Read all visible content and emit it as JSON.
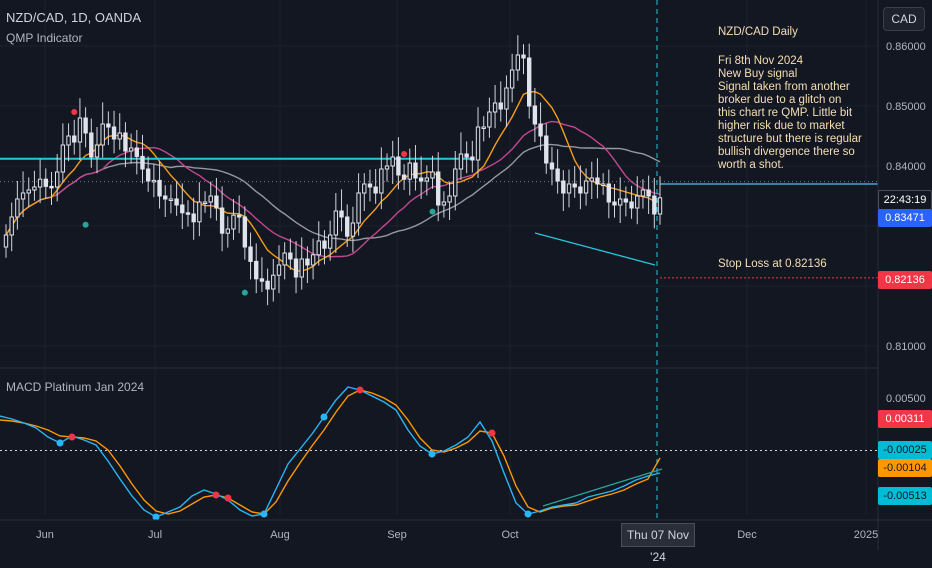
{
  "header": {
    "symbol": "NZD/CAD, 1D, OANDA",
    "indicator": "QMP Indicator",
    "lower_pane": "MACD Platinum Jan 2024",
    "currency_button": "CAD"
  },
  "annotation": {
    "title": "NZD/CAD Daily",
    "date": "Fri 8th Nov 2024",
    "lines": [
      "New Buy signal",
      "Signal taken from another",
      "broker due to a glitch on",
      "this chart re QMP. Little bit",
      "higher risk due to market",
      "structure but there is regular",
      "bullish divergence there so",
      "worth a shot."
    ],
    "stop_loss": "Stop Loss at 0.82136"
  },
  "price_tags": {
    "countdown": "22:43:19",
    "last": "0.83471",
    "stop": "0.82136",
    "macd_a": "0.00311",
    "macd_b": "-0.00025",
    "macd_c": "-0.00104",
    "macd_d": "-0.00513"
  },
  "crosshair_date": "Thu 07 Nov '24",
  "colors": {
    "background": "#131722",
    "up": "#ffffff",
    "down": "#ffffff",
    "ma_fast": "#f59c1a",
    "ma_mid": "#c2478f",
    "ma_slow": "#9598a1",
    "horizontal_line": "#26c6da",
    "buy_dot": "#26a69a",
    "sell_dot": "#f23645",
    "macd_line": "#29b6f6",
    "signal_line": "#ff9800",
    "stop_tag": "#f23645",
    "last_tag": "#2962ff"
  },
  "chart_data": [
    {
      "type": "candlestick",
      "title": "NZD/CAD, 1D, OANDA",
      "x_ticks": [
        "Jun",
        "Jul",
        "Aug",
        "Sep",
        "Oct",
        "Dec",
        "2025"
      ],
      "y_ticks": [
        "0.86000",
        "0.85000",
        "0.84000",
        "0.81000"
      ],
      "ylim": [
        0.8055,
        0.8627
      ],
      "price_series": [
        0.8285,
        0.8315,
        0.8345,
        0.8355,
        0.836,
        0.8365,
        0.8378,
        0.8366,
        0.8365,
        0.839,
        0.8435,
        0.845,
        0.844,
        0.848,
        0.8455,
        0.8415,
        0.8435,
        0.847,
        0.8465,
        0.8445,
        0.8455,
        0.8425,
        0.843,
        0.8416,
        0.8395,
        0.8375,
        0.8376,
        0.835,
        0.8345,
        0.8345,
        0.8335,
        0.8322,
        0.832,
        0.8307,
        0.834,
        0.834,
        0.835,
        0.833,
        0.8288,
        0.8295,
        0.8318,
        0.8315,
        0.8265,
        0.8241,
        0.8212,
        0.8208,
        0.8195,
        0.8218,
        0.8235,
        0.8255,
        0.8245,
        0.8215,
        0.8245,
        0.8235,
        0.8252,
        0.8275,
        0.8263,
        0.8285,
        0.8325,
        0.8315,
        0.8283,
        0.8305,
        0.8355,
        0.837,
        0.8365,
        0.8355,
        0.8395,
        0.84,
        0.8415,
        0.8385,
        0.8378,
        0.8405,
        0.838,
        0.8375,
        0.838,
        0.839,
        0.8335,
        0.834,
        0.835,
        0.8395,
        0.842,
        0.8415,
        0.841,
        0.8465,
        0.8465,
        0.849,
        0.8505,
        0.8495,
        0.853,
        0.856,
        0.8585,
        0.858,
        0.85,
        0.847,
        0.845,
        0.8405,
        0.8395,
        0.8375,
        0.8355,
        0.837,
        0.8365,
        0.8355,
        0.8375,
        0.838,
        0.837,
        0.837,
        0.834,
        0.8335,
        0.8345,
        0.834,
        0.833,
        0.835,
        0.836,
        0.835,
        0.832,
        0.8347
      ],
      "horizontal_level": 0.8412,
      "stop_loss": 0.82136,
      "last": 0.83471,
      "buy_signals": [
        [
          14,
          0.8302
        ],
        [
          42,
          0.8189
        ],
        [
          75,
          0.8324
        ]
      ],
      "sell_signals": [
        [
          12,
          0.849
        ],
        [
          70,
          0.842
        ]
      ]
    },
    {
      "type": "line",
      "title": "MACD Platinum Jan 2024",
      "y_ticks": [
        "0.00500"
      ],
      "ylim": [
        -0.0075,
        0.0075
      ],
      "series": [
        {
          "values": [
            0.0032,
            0.0029,
            0.0025,
            0.002,
            0.0011,
            0.0005,
            0.0012,
            0.0008,
            0.0003,
            -0.0013,
            -0.0031,
            -0.0048,
            -0.0062,
            -0.0069,
            -0.0064,
            -0.0059,
            -0.0048,
            -0.0042,
            -0.0046,
            -0.0052,
            -0.0062,
            -0.0068,
            -0.0066,
            -0.0041,
            -0.0016,
            -0.0001,
            0.0014,
            0.0031,
            0.0048,
            0.0061,
            0.0058,
            0.0052,
            0.0046,
            0.0038,
            0.0018,
            0.0002,
            -0.0006,
            -0.0003,
            0.0003,
            0.0011,
            0.0026,
            0.0007,
            -0.0025,
            -0.0055,
            -0.0066,
            -0.0063,
            -0.0059,
            -0.0057,
            -0.0055,
            -0.0049,
            -0.0046,
            -0.0043,
            -0.0038,
            -0.0032,
            -0.0028,
            -0.0025
          ]
        },
        {
          "values": [
            0.0028,
            0.0027,
            0.0025,
            0.0022,
            0.0018,
            0.0012,
            0.0011,
            0.001,
            0.0007,
            -0.0002,
            -0.0018,
            -0.0036,
            -0.0052,
            -0.0063,
            -0.0066,
            -0.0063,
            -0.0056,
            -0.0049,
            -0.0047,
            -0.005,
            -0.0057,
            -0.0064,
            -0.0066,
            -0.0054,
            -0.0033,
            -0.0015,
            0.0002,
            0.0018,
            0.0036,
            0.0052,
            0.0058,
            0.0055,
            0.005,
            0.0043,
            0.0028,
            0.001,
            -0.0002,
            -0.0004,
            0,
            0.0006,
            0.0017,
            0.0015,
            -0.0008,
            -0.0038,
            -0.0059,
            -0.0064,
            -0.006,
            -0.0058,
            -0.0057,
            -0.0053,
            -0.0049,
            -0.0046,
            -0.0042,
            -0.0036,
            -0.0031,
            -0.001
          ]
        }
      ]
    }
  ]
}
